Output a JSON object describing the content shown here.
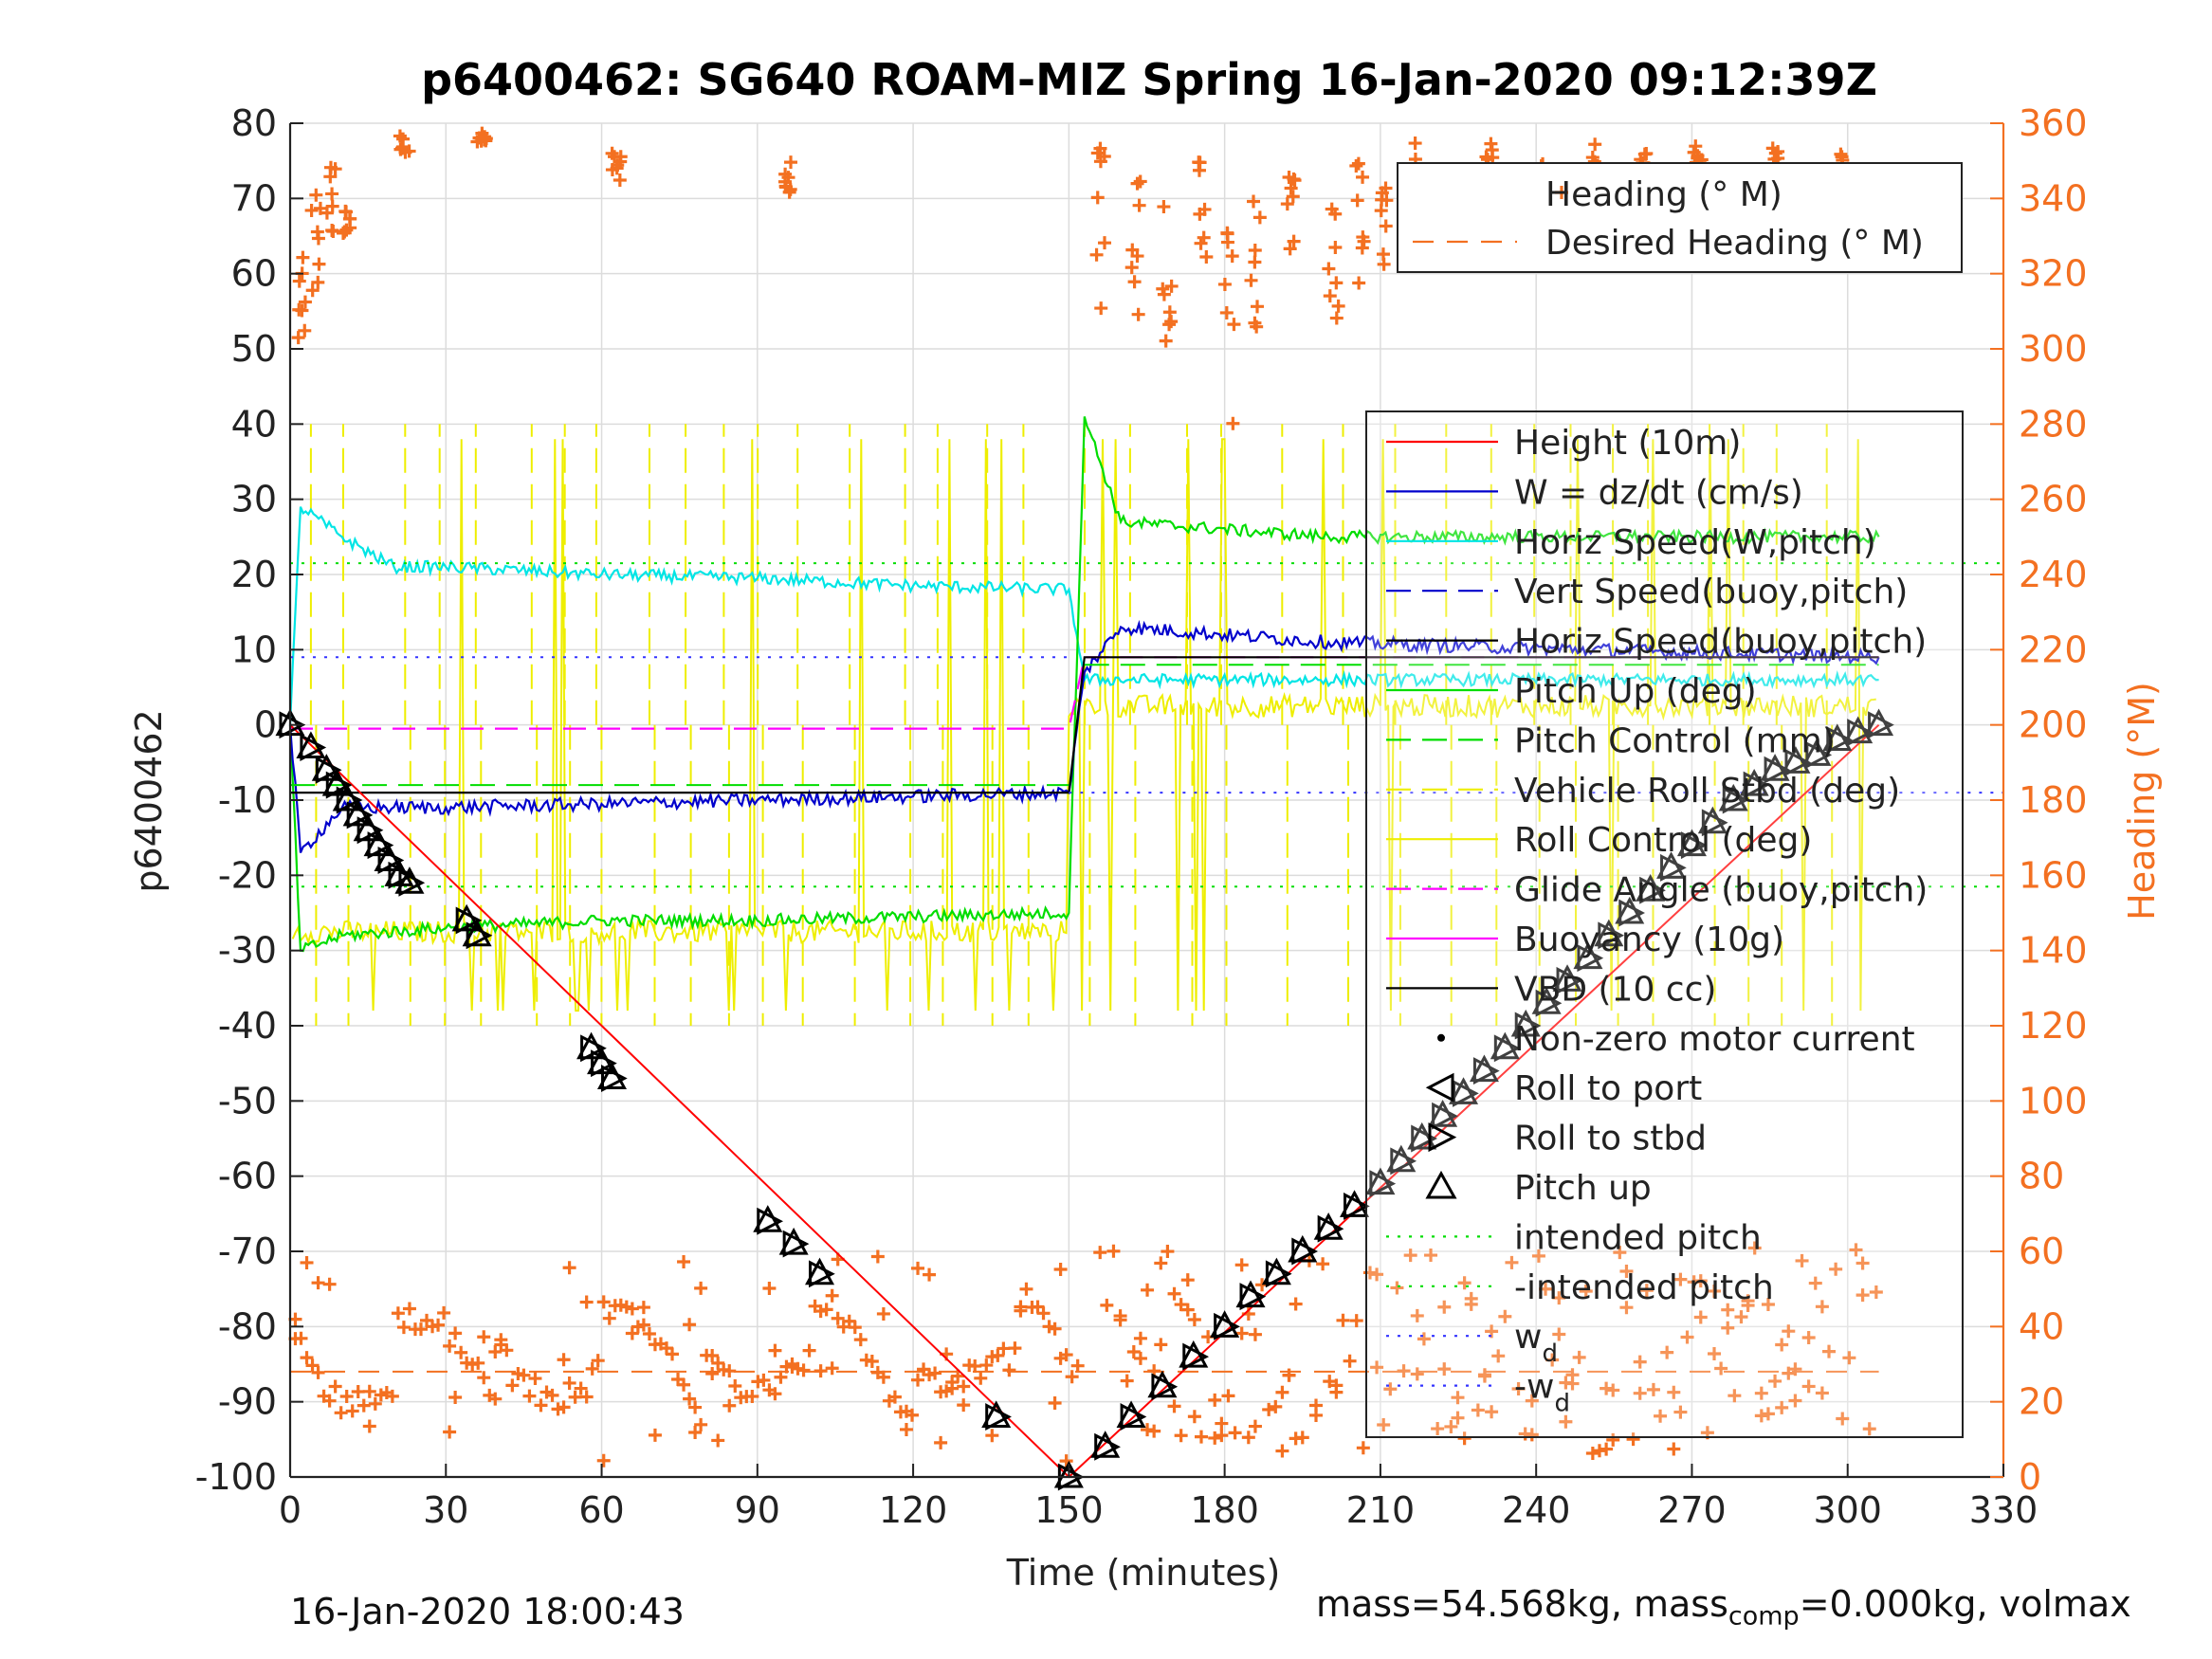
{
  "chart_data": {
    "type": "line",
    "title": "p6400462: SG640 ROAM-MIZ Spring 16-Jan-2020 09:12:39Z",
    "xlabel": "Time (minutes)",
    "ylabel": "p6400462",
    "y2label": "Heading (°M)",
    "xlim": [
      0,
      330
    ],
    "ylim": [
      -100,
      80
    ],
    "y2lim": [
      0,
      360
    ],
    "xticks": [
      0,
      30,
      60,
      90,
      120,
      150,
      180,
      210,
      240,
      270,
      300,
      330
    ],
    "yticks": [
      -100,
      -90,
      -80,
      -70,
      -60,
      -50,
      -40,
      -30,
      -20,
      -10,
      0,
      10,
      20,
      30,
      40,
      50,
      60,
      70,
      80
    ],
    "y2ticks": [
      0,
      20,
      40,
      60,
      80,
      100,
      120,
      140,
      160,
      180,
      200,
      220,
      240,
      260,
      280,
      300,
      320,
      340,
      360
    ],
    "grid": true,
    "colors": {
      "height": "#ff0000",
      "w": "#0000cc",
      "horiz_speed": "#00e5e5",
      "pitch": "#00dd00",
      "roll": "#eeee00",
      "glide": "#ff00ff",
      "vbd": "#000000",
      "heading": "#f37021",
      "wd": "#3333ff"
    },
    "legend_heading": {
      "placement": "top-right",
      "entries": [
        "Heading (° M)",
        "Desired Heading (° M)"
      ]
    },
    "legend_main": {
      "placement": "right",
      "entries": [
        "Height (10m)",
        "W = dz/dt (cm/s)",
        "Horiz Speed(W,pitch)",
        "Vert Speed(buoy,pitch)",
        "Horiz Speed(buoy,pitch)",
        "Pitch Up (deg)",
        "Pitch Control (mm)",
        "Vehicle Roll Stbd (deg)",
        "Roll Control (deg)",
        "Glide Angle (buoy,pitch)",
        "Buoyancy (10g)",
        "VBD (10 cc)",
        "Non-zero motor current",
        "Roll to port",
        "Roll to stbd",
        "Pitch up",
        "intended pitch",
        "-intended pitch",
        "w",
        "-w"
      ],
      "subscripts": [
        "d",
        "d"
      ]
    },
    "series": [
      {
        "name": "Height (10m)",
        "x": [
          0,
          150,
          306
        ],
        "y": [
          0,
          -100,
          0
        ]
      },
      {
        "name": "W = dz/dt (cm/s)",
        "x": [
          0,
          2,
          10,
          30,
          60,
          90,
          120,
          150,
          153,
          160,
          200,
          250,
          306
        ],
        "y": [
          0,
          -17,
          -11,
          -11,
          -10.5,
          -10,
          -9.5,
          -9,
          7,
          13,
          11,
          10,
          9
        ]
      },
      {
        "name": "Horiz Speed(W,pitch)",
        "x": [
          0,
          2,
          10,
          20,
          30,
          60,
          90,
          120,
          150,
          153,
          306
        ],
        "y": [
          0,
          29,
          25,
          21,
          21,
          20,
          19.5,
          18.5,
          18,
          6,
          6
        ]
      },
      {
        "name": "Pitch Up (deg)",
        "x": [
          0,
          2,
          10,
          30,
          60,
          90,
          120,
          150,
          153,
          160,
          200,
          250,
          306
        ],
        "y": [
          0,
          -30,
          -28,
          -27,
          -26,
          -26,
          -25.5,
          -25,
          41,
          27,
          25,
          25,
          25
        ]
      },
      {
        "name": "Glide Angle (buoy,pitch)",
        "x": [
          0,
          150,
          153,
          306
        ],
        "y": [
          -0.5,
          -0.5,
          9,
          9
        ]
      },
      {
        "name": "VBD (10 cc)",
        "x": [
          0,
          150,
          153,
          306
        ],
        "y": [
          -9,
          -9,
          9,
          9
        ]
      },
      {
        "name": "Desired Heading (° M)",
        "x": [
          0,
          306
        ],
        "y": [
          28,
          28
        ],
        "axis": "right"
      }
    ],
    "intended_pitch": 21.5,
    "wd": 9,
    "pitch_up_markers": {
      "x": [
        0,
        4,
        7,
        9,
        11,
        13,
        15,
        17,
        19,
        21,
        23,
        34,
        36,
        58,
        60,
        62,
        92,
        97,
        102,
        136,
        150,
        157,
        162,
        168,
        174,
        180,
        185,
        190,
        195,
        200,
        205,
        210,
        214,
        218,
        222,
        226,
        230,
        234,
        238,
        242,
        246,
        250,
        254,
        258,
        262,
        266,
        270,
        274,
        278,
        282,
        286,
        290,
        294,
        298,
        302,
        306
      ],
      "y": [
        0,
        -3,
        -6,
        -8,
        -10,
        -12,
        -14,
        -16,
        -18,
        -20,
        -21,
        -26,
        -28,
        -43,
        -45,
        -47,
        -66,
        -69,
        -73,
        -92,
        -100,
        -96,
        -92,
        -88,
        -84,
        -80,
        -76,
        -73,
        -70,
        -67,
        -64,
        -61,
        -58,
        -55,
        -52,
        -49,
        -46,
        -43,
        -40,
        -37,
        -34,
        -31,
        -28,
        -25,
        -22,
        -19,
        -16,
        -13,
        -10,
        -8,
        -6,
        -5,
        -4,
        -2,
        -1,
        0
      ]
    }
  },
  "footer": {
    "timestamp": "16-Jan-2020 18:00:43",
    "mass_text": "mass=54.568kg, mass",
    "mass_sub": "comp",
    "mass_rest": "=0.000kg, volmax"
  }
}
